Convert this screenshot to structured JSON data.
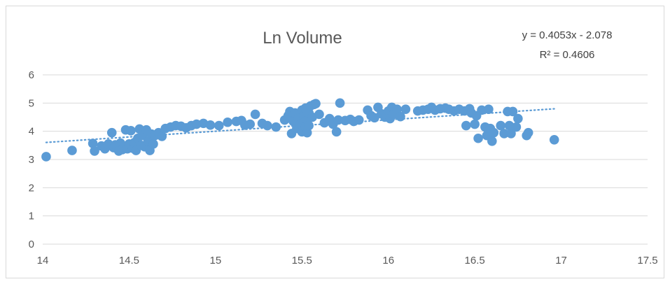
{
  "chart_data": {
    "type": "scatter",
    "title": "Ln Volume",
    "xlabel": "",
    "ylabel": "",
    "xlim": [
      14,
      17.5
    ],
    "ylim": [
      0,
      6
    ],
    "x_ticks": [
      "14",
      "14.5",
      "15",
      "15.5",
      "16",
      "16.5",
      "17",
      "17.5"
    ],
    "y_ticks": [
      "0",
      "1",
      "2",
      "3",
      "4",
      "5",
      "6"
    ],
    "grid": "horizontal",
    "legend": "none",
    "marker_color": "#5b9bd5",
    "trendline": {
      "type": "linear",
      "slope": 0.4053,
      "intercept": -2.078,
      "x_range": [
        14.02,
        16.96
      ],
      "style": "dotted",
      "color": "#5b9bd5",
      "equation_text": "y = 0.4053x - 2.078",
      "r2_text": "R² = 0.4606"
    },
    "series": [
      {
        "points": [
          [
            14.02,
            3.1
          ],
          [
            14.17,
            3.32
          ],
          [
            14.29,
            3.57
          ],
          [
            14.3,
            3.3
          ],
          [
            14.34,
            3.48
          ],
          [
            14.36,
            3.38
          ],
          [
            14.38,
            3.55
          ],
          [
            14.4,
            3.95
          ],
          [
            14.41,
            3.42
          ],
          [
            14.42,
            3.52
          ],
          [
            14.44,
            3.3
          ],
          [
            14.45,
            3.58
          ],
          [
            14.46,
            3.35
          ],
          [
            14.47,
            3.45
          ],
          [
            14.48,
            4.05
          ],
          [
            14.49,
            3.38
          ],
          [
            14.5,
            3.55
          ],
          [
            14.51,
            4.02
          ],
          [
            14.52,
            3.4
          ],
          [
            14.53,
            3.6
          ],
          [
            14.54,
            3.32
          ],
          [
            14.55,
            3.75
          ],
          [
            14.56,
            4.08
          ],
          [
            14.57,
            3.5
          ],
          [
            14.58,
            3.85
          ],
          [
            14.59,
            3.45
          ],
          [
            14.6,
            4.05
          ],
          [
            14.61,
            3.65
          ],
          [
            14.62,
            3.32
          ],
          [
            14.63,
            3.9
          ],
          [
            14.64,
            3.55
          ],
          [
            14.65,
            3.85
          ],
          [
            14.67,
            3.95
          ],
          [
            14.69,
            3.82
          ],
          [
            14.71,
            4.1
          ],
          [
            14.74,
            4.15
          ],
          [
            14.77,
            4.2
          ],
          [
            14.8,
            4.18
          ],
          [
            14.83,
            4.12
          ],
          [
            14.86,
            4.2
          ],
          [
            14.89,
            4.25
          ],
          [
            14.93,
            4.28
          ],
          [
            14.97,
            4.22
          ],
          [
            15.02,
            4.2
          ],
          [
            15.07,
            4.32
          ],
          [
            15.12,
            4.35
          ],
          [
            15.15,
            4.38
          ],
          [
            15.17,
            4.22
          ],
          [
            15.2,
            4.25
          ],
          [
            15.23,
            4.6
          ],
          [
            15.27,
            4.28
          ],
          [
            15.3,
            4.2
          ],
          [
            15.35,
            4.15
          ],
          [
            15.4,
            4.4
          ],
          [
            15.42,
            4.55
          ],
          [
            15.43,
            4.7
          ],
          [
            15.44,
            3.92
          ],
          [
            15.45,
            4.35
          ],
          [
            15.46,
            4.65
          ],
          [
            15.47,
            4.1
          ],
          [
            15.48,
            4.45
          ],
          [
            15.49,
            4.25
          ],
          [
            15.5,
            4.75
          ],
          [
            15.5,
            3.98
          ],
          [
            15.51,
            4.55
          ],
          [
            15.51,
            4.3
          ],
          [
            15.52,
            4.82
          ],
          [
            15.52,
            4.15
          ],
          [
            15.53,
            4.4
          ],
          [
            15.53,
            3.95
          ],
          [
            15.54,
            4.65
          ],
          [
            15.54,
            4.2
          ],
          [
            15.55,
            4.9
          ],
          [
            15.56,
            4.5
          ],
          [
            15.57,
            4.95
          ],
          [
            15.58,
            4.98
          ],
          [
            15.6,
            4.6
          ],
          [
            15.63,
            4.3
          ],
          [
            15.66,
            4.45
          ],
          [
            15.68,
            4.25
          ],
          [
            15.7,
            3.98
          ],
          [
            15.71,
            4.4
          ],
          [
            15.72,
            5.0
          ],
          [
            15.75,
            4.38
          ],
          [
            15.78,
            4.42
          ],
          [
            15.8,
            4.35
          ],
          [
            15.83,
            4.4
          ],
          [
            15.88,
            4.75
          ],
          [
            15.9,
            4.55
          ],
          [
            15.92,
            4.48
          ],
          [
            15.94,
            4.85
          ],
          [
            15.96,
            4.62
          ],
          [
            15.98,
            4.5
          ],
          [
            16.0,
            4.72
          ],
          [
            16.01,
            4.45
          ],
          [
            16.02,
            4.85
          ],
          [
            16.03,
            4.6
          ],
          [
            16.05,
            4.78
          ],
          [
            16.07,
            4.52
          ],
          [
            16.1,
            4.78
          ],
          [
            16.17,
            4.72
          ],
          [
            16.2,
            4.75
          ],
          [
            16.23,
            4.78
          ],
          [
            16.25,
            4.85
          ],
          [
            16.27,
            4.75
          ],
          [
            16.3,
            4.8
          ],
          [
            16.33,
            4.82
          ],
          [
            16.35,
            4.78
          ],
          [
            16.38,
            4.72
          ],
          [
            16.41,
            4.78
          ],
          [
            16.44,
            4.72
          ],
          [
            16.45,
            4.2
          ],
          [
            16.47,
            4.8
          ],
          [
            16.48,
            4.65
          ],
          [
            16.5,
            4.25
          ],
          [
            16.51,
            4.55
          ],
          [
            16.52,
            3.75
          ],
          [
            16.54,
            4.75
          ],
          [
            16.56,
            4.15
          ],
          [
            16.57,
            3.85
          ],
          [
            16.58,
            4.78
          ],
          [
            16.59,
            4.1
          ],
          [
            16.6,
            3.65
          ],
          [
            16.61,
            3.95
          ],
          [
            16.65,
            4.2
          ],
          [
            16.67,
            3.92
          ],
          [
            16.69,
            4.7
          ],
          [
            16.7,
            4.2
          ],
          [
            16.71,
            3.92
          ],
          [
            16.72,
            4.7
          ],
          [
            16.74,
            4.15
          ],
          [
            16.75,
            4.45
          ],
          [
            16.8,
            3.85
          ],
          [
            16.81,
            3.95
          ],
          [
            16.96,
            3.7
          ]
        ]
      }
    ]
  }
}
